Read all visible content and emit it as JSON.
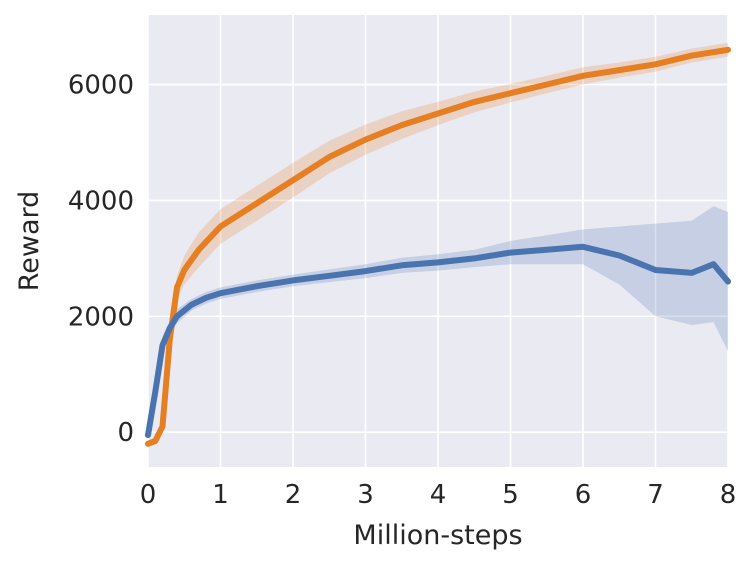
{
  "chart_data": {
    "type": "line",
    "xlabel": "Million-steps",
    "ylabel": "Reward",
    "xlim": [
      0,
      8
    ],
    "ylim": [
      -600,
      7200
    ],
    "x_ticks": [
      "0",
      "1",
      "2",
      "3",
      "4",
      "5",
      "6",
      "7",
      "8"
    ],
    "y_ticks": [
      "0",
      "2000",
      "4000",
      "6000"
    ],
    "grid": true,
    "legend": "none",
    "background_color": "#eaeaf2",
    "series": [
      {
        "color": "#e67e22",
        "x": [
          0,
          0.1,
          0.2,
          0.3,
          0.4,
          0.5,
          0.7,
          1.0,
          1.5,
          2.0,
          2.5,
          3.0,
          3.5,
          4.0,
          4.5,
          5.0,
          5.5,
          6.0,
          6.5,
          7.0,
          7.5,
          8.0
        ],
        "y": [
          -200,
          -150,
          100,
          1600,
          2500,
          2800,
          3150,
          3550,
          3950,
          4350,
          4750,
          5050,
          5300,
          5500,
          5700,
          5850,
          6000,
          6150,
          6250,
          6350,
          6500,
          6600
        ],
        "band": [
          0,
          50,
          100,
          150,
          200,
          250,
          300,
          300,
          300,
          300,
          280,
          260,
          240,
          200,
          180,
          160,
          150,
          150,
          130,
          130,
          120,
          120
        ]
      },
      {
        "color": "#4a74b0",
        "x": [
          0,
          0.1,
          0.2,
          0.3,
          0.4,
          0.6,
          0.8,
          1.0,
          1.5,
          2.0,
          2.5,
          3.0,
          3.5,
          4.0,
          4.5,
          5.0,
          5.5,
          6.0,
          6.5,
          7.0,
          7.5,
          7.8,
          8.0
        ],
        "y": [
          -50,
          700,
          1500,
          1800,
          2000,
          2200,
          2320,
          2400,
          2520,
          2620,
          2700,
          2780,
          2880,
          2930,
          3000,
          3100,
          3150,
          3200,
          3050,
          2800,
          2750,
          2900,
          2600
        ],
        "band": [
          50,
          100,
          120,
          120,
          120,
          100,
          100,
          100,
          100,
          100,
          110,
          120,
          130,
          140,
          150,
          200,
          250,
          300,
          500,
          800,
          900,
          1000,
          1200
        ]
      }
    ]
  }
}
